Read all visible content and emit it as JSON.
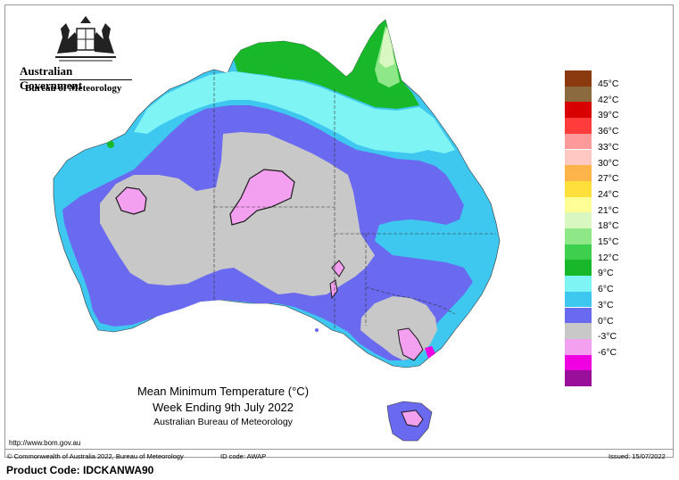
{
  "header": {
    "government": "Australian Government",
    "agency": "Bureau of Meteorology"
  },
  "map": {
    "region": "Australia",
    "colors": {
      "land_default": "#c8c8c8",
      "ocean": "#ffffff",
      "state_border": "#333333",
      "contour_outline": "#1a1a1a"
    }
  },
  "legend": {
    "items": [
      {
        "label": "45°C",
        "color": "#8b3a0f"
      },
      {
        "label": "42°C",
        "color": "#8c6a3f"
      },
      {
        "label": "39°C",
        "color": "#d90000"
      },
      {
        "label": "36°C",
        "color": "#ff3c3c"
      },
      {
        "label": "33°C",
        "color": "#ff9a9a"
      },
      {
        "label": "30°C",
        "color": "#ffc8c0"
      },
      {
        "label": "27°C",
        "color": "#ffb44a"
      },
      {
        "label": "24°C",
        "color": "#ffe03a"
      },
      {
        "label": "21°C",
        "color": "#ffff96"
      },
      {
        "label": "18°C",
        "color": "#d9f7c0"
      },
      {
        "label": "15°C",
        "color": "#8ee888"
      },
      {
        "label": "12°C",
        "color": "#3fcf4f"
      },
      {
        "label": "9°C",
        "color": "#19b82a"
      },
      {
        "label": "6°C",
        "color": "#7ff4f4"
      },
      {
        "label": "3°C",
        "color": "#3ec8f0"
      },
      {
        "label": "0°C",
        "color": "#6a6af0"
      },
      {
        "label": "-3°C",
        "color": "#c8c8c8"
      },
      {
        "label": "-6°C",
        "color": "#f4a0f0"
      },
      {
        "label": "",
        "color": "#f000e0"
      },
      {
        "label": "",
        "color": "#9a0f9a"
      }
    ]
  },
  "titles": {
    "line1": "Mean Minimum Temperature (°C)",
    "line2": "Week Ending 9th July 2022",
    "line3": "Australian Bureau of Meteorology"
  },
  "footer": {
    "url": "http://www.bom.gov.au",
    "copyright": "© Commonwealth of Australia 2022, Bureau of Meteorology",
    "id_code": "ID code: AWAP",
    "issued": "Issued: 15/07/2022",
    "product": "Product Code: IDCKANWA90"
  }
}
